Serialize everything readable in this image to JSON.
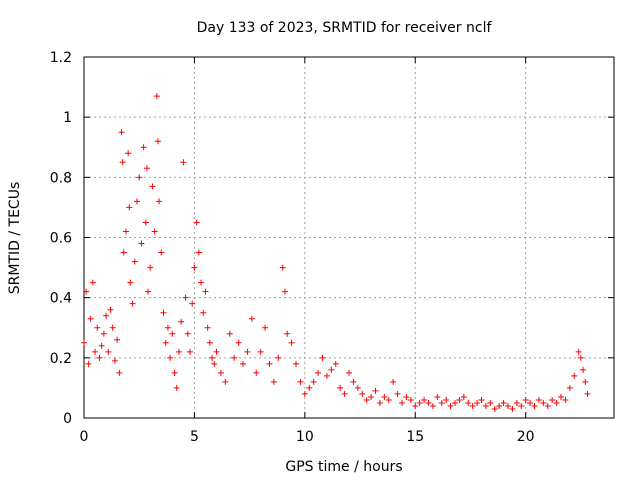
{
  "chart_data": {
    "type": "scatter",
    "title": "Day 133 of 2023, SRMTID for receiver nclf",
    "xlabel": "GPS time / hours",
    "ylabel": "SRMTID / TECUs",
    "xlim": [
      0,
      24
    ],
    "ylim": [
      0,
      1.2
    ],
    "x_ticks": [
      0,
      5,
      10,
      15,
      20
    ],
    "x_tick_labels": [
      "0",
      "5",
      "10",
      "15",
      "20"
    ],
    "y_ticks": [
      0,
      0.2,
      0.4,
      0.6,
      0.8,
      1.0,
      1.2
    ],
    "y_tick_labels": [
      "0",
      "0.2",
      "0.4",
      "0.6",
      "0.8",
      "1",
      "1.2"
    ],
    "grid": true,
    "marker": "+",
    "series": [
      {
        "name": "SRMTID",
        "color": "#ff0000",
        "x": [
          0.0,
          0.1,
          0.2,
          0.3,
          0.4,
          0.5,
          0.6,
          0.7,
          0.8,
          0.9,
          1.0,
          1.1,
          1.2,
          1.3,
          1.4,
          1.5,
          1.6,
          1.7,
          1.75,
          1.8,
          1.9,
          2.0,
          2.05,
          2.1,
          2.2,
          2.3,
          2.4,
          2.5,
          2.6,
          2.7,
          2.8,
          2.85,
          2.9,
          3.0,
          3.1,
          3.2,
          3.3,
          3.35,
          3.4,
          3.5,
          3.6,
          3.7,
          3.8,
          3.9,
          4.0,
          4.1,
          4.2,
          4.3,
          4.4,
          4.5,
          4.6,
          4.7,
          4.8,
          4.9,
          5.0,
          5.1,
          5.2,
          5.3,
          5.4,
          5.5,
          5.6,
          5.7,
          5.8,
          5.9,
          6.0,
          6.2,
          6.4,
          6.6,
          6.8,
          7.0,
          7.2,
          7.4,
          7.6,
          7.8,
          8.0,
          8.2,
          8.4,
          8.6,
          8.8,
          9.0,
          9.1,
          9.2,
          9.4,
          9.6,
          9.8,
          10.0,
          10.2,
          10.4,
          10.6,
          10.8,
          11.0,
          11.2,
          11.4,
          11.6,
          11.8,
          12.0,
          12.2,
          12.4,
          12.6,
          12.8,
          13.0,
          13.2,
          13.4,
          13.6,
          13.8,
          14.0,
          14.2,
          14.4,
          14.6,
          14.8,
          15.0,
          15.2,
          15.4,
          15.6,
          15.8,
          16.0,
          16.2,
          16.4,
          16.6,
          16.8,
          17.0,
          17.2,
          17.4,
          17.6,
          17.8,
          18.0,
          18.2,
          18.4,
          18.6,
          18.8,
          19.0,
          19.2,
          19.4,
          19.6,
          19.8,
          20.0,
          20.2,
          20.4,
          20.6,
          20.8,
          21.0,
          21.2,
          21.4,
          21.6,
          21.8,
          22.0,
          22.2,
          22.4,
          22.5,
          22.6,
          22.7,
          22.8
        ],
        "y": [
          0.25,
          0.42,
          0.18,
          0.33,
          0.45,
          0.22,
          0.3,
          0.2,
          0.24,
          0.28,
          0.34,
          0.22,
          0.36,
          0.3,
          0.19,
          0.26,
          0.15,
          0.95,
          0.85,
          0.55,
          0.62,
          0.88,
          0.7,
          0.45,
          0.38,
          0.52,
          0.72,
          0.8,
          0.58,
          0.9,
          0.65,
          0.83,
          0.42,
          0.5,
          0.77,
          0.62,
          1.07,
          0.92,
          0.72,
          0.55,
          0.35,
          0.25,
          0.3,
          0.2,
          0.28,
          0.15,
          0.1,
          0.22,
          0.32,
          0.85,
          0.4,
          0.28,
          0.22,
          0.38,
          0.5,
          0.65,
          0.55,
          0.45,
          0.35,
          0.42,
          0.3,
          0.25,
          0.2,
          0.18,
          0.22,
          0.15,
          0.12,
          0.28,
          0.2,
          0.25,
          0.18,
          0.22,
          0.33,
          0.15,
          0.22,
          0.3,
          0.18,
          0.12,
          0.2,
          0.5,
          0.42,
          0.28,
          0.25,
          0.18,
          0.12,
          0.08,
          0.1,
          0.12,
          0.15,
          0.2,
          0.14,
          0.16,
          0.18,
          0.1,
          0.08,
          0.15,
          0.12,
          0.1,
          0.08,
          0.06,
          0.07,
          0.09,
          0.05,
          0.07,
          0.06,
          0.12,
          0.08,
          0.05,
          0.07,
          0.06,
          0.04,
          0.05,
          0.06,
          0.05,
          0.04,
          0.07,
          0.05,
          0.06,
          0.04,
          0.05,
          0.06,
          0.07,
          0.05,
          0.04,
          0.05,
          0.06,
          0.04,
          0.05,
          0.03,
          0.04,
          0.05,
          0.04,
          0.03,
          0.05,
          0.04,
          0.06,
          0.05,
          0.04,
          0.06,
          0.05,
          0.04,
          0.06,
          0.05,
          0.07,
          0.06,
          0.1,
          0.14,
          0.22,
          0.2,
          0.16,
          0.12,
          0.08
        ]
      }
    ]
  }
}
